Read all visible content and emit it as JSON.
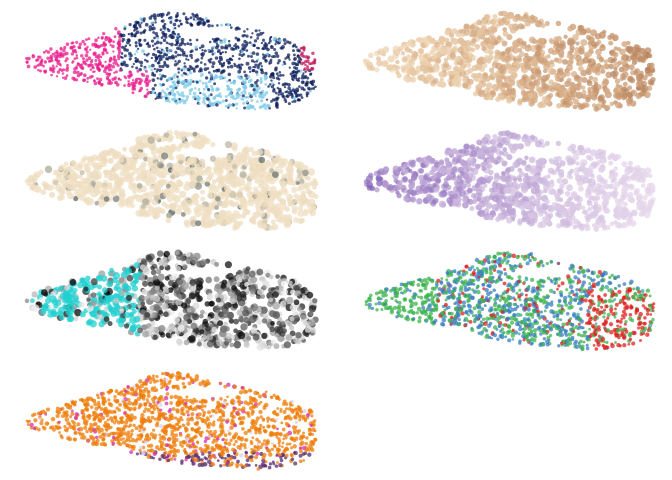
{
  "chart_data": [
    {
      "type": "scatter",
      "panel": 1,
      "kind": "categorical",
      "colors": [
        "#e91e8c",
        "#0d1f5c",
        "#7ecbea",
        "#c2185b"
      ],
      "grid": false,
      "axes": false,
      "legend": "none"
    },
    {
      "type": "scatter",
      "panel": 2,
      "kind": "continuous",
      "colormap": [
        "#f8e8d0",
        "#e8c9a4",
        "#c99870",
        "#a9744f"
      ],
      "grid": false,
      "axes": false,
      "legend": "none"
    },
    {
      "type": "scatter",
      "panel": 3,
      "kind": "continuous",
      "colormap": [
        "#f1e0c3",
        "#e3d3b4",
        "#a8a79a",
        "#4c5a5c"
      ],
      "grid": false,
      "axes": false,
      "legend": "none"
    },
    {
      "type": "scatter",
      "panel": 4,
      "kind": "continuous",
      "colormap": [
        "#f2e6f2",
        "#d6c3e2",
        "#a98dca",
        "#7a55b3"
      ],
      "grid": false,
      "axes": false,
      "legend": "none"
    },
    {
      "type": "scatter",
      "panel": 5,
      "kind": "continuous",
      "colormap": [
        "#ffffff",
        "#bdbdbd",
        "#5a5a5a",
        "#000000",
        "#20d0d0"
      ],
      "grid": false,
      "axes": false,
      "legend": "none"
    },
    {
      "type": "scatter",
      "panel": 6,
      "kind": "categorical",
      "colors": [
        "#3cb44b",
        "#3a7fc1",
        "#e02020",
        "#3aa7a7"
      ],
      "grid": false,
      "axes": false,
      "legend": "none"
    },
    {
      "type": "scatter",
      "panel": 7,
      "kind": "categorical",
      "colors": [
        "#ef7d0a",
        "#5a2a6e",
        "#d42fae",
        "#d8d2f0"
      ],
      "grid": false,
      "axes": false,
      "legend": "none"
    }
  ]
}
